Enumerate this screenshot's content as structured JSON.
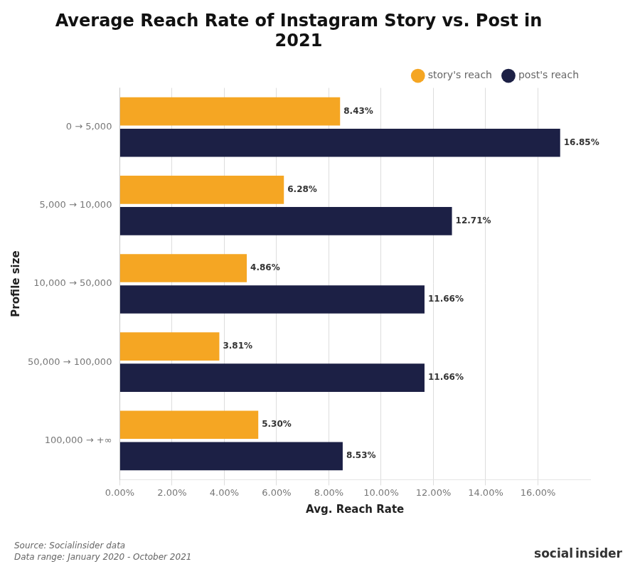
{
  "chart_data": {
    "type": "bar",
    "orientation": "horizontal",
    "title": "Average Reach Rate of Instagram Story vs. Post in\n2021",
    "xlabel": "Avg. Reach Rate",
    "ylabel": "Profile size",
    "categories": [
      "0 → 5,000",
      "5,000 → 10,000",
      "10,000 → 50,000",
      "50,000 → 100,000",
      "100,000 → +∞"
    ],
    "series": [
      {
        "name": "story's reach",
        "color": "#F5A623",
        "values": [
          8.43,
          6.28,
          4.86,
          3.81,
          5.3
        ],
        "value_labels": [
          "8.43%",
          "6.28%",
          "4.86%",
          "3.81%",
          "5.30%"
        ]
      },
      {
        "name": "post's reach",
        "color": "#1C2045",
        "values": [
          16.85,
          12.71,
          11.66,
          11.66,
          8.53
        ],
        "value_labels": [
          "16.85%",
          "12.71%",
          "11.66%",
          "11.66%",
          "8.53%"
        ]
      }
    ],
    "xlim": [
      0,
      18
    ],
    "xticks": [
      {
        "value": 0,
        "label": "0.00%"
      },
      {
        "value": 2,
        "label": "2.00%"
      },
      {
        "value": 4,
        "label": "4.00%"
      },
      {
        "value": 6,
        "label": "6.00%"
      },
      {
        "value": 8,
        "label": "8.00%"
      },
      {
        "value": 10,
        "label": "10.00%"
      },
      {
        "value": 12,
        "label": "12.00%"
      },
      {
        "value": 14,
        "label": "14.00%"
      },
      {
        "value": 16,
        "label": "16.00%"
      }
    ],
    "grid": true,
    "legend": "upper right",
    "data_labels": true,
    "annotations": [
      "Source: Socialinsider data\nData range: January 2020 - October 2021",
      "social",
      "insider"
    ]
  }
}
